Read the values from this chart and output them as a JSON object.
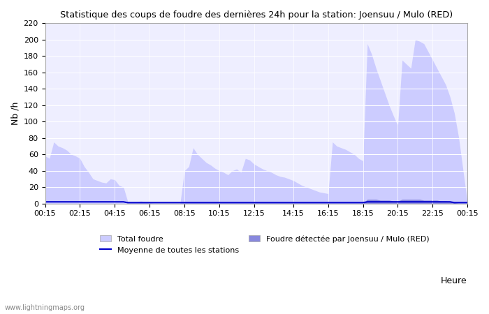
{
  "title": "Statistique des coups de foudre des dernières 24h pour la station: Joensuu / Mulo (RED)",
  "xlabel": "Heure",
  "ylabel": "Nb /h",
  "ylim": [
    0,
    220
  ],
  "yticks": [
    0,
    20,
    40,
    60,
    80,
    100,
    120,
    140,
    160,
    180,
    200,
    220
  ],
  "x_labels": [
    "00:15",
    "02:15",
    "04:15",
    "06:15",
    "08:15",
    "10:15",
    "12:15",
    "14:15",
    "16:15",
    "18:15",
    "20:15",
    "22:15",
    "00:15"
  ],
  "background_color": "#ffffff",
  "plot_bg_color": "#eeeeff",
  "grid_color": "#ffffff",
  "total_foudre_color": "#ccccff",
  "detected_color": "#8888dd",
  "avg_line_color": "#0000cc",
  "watermark": "www.lightningmaps.org",
  "total_foudre": [
    58,
    55,
    75,
    70,
    68,
    65,
    60,
    58,
    55,
    45,
    38,
    30,
    28,
    26,
    25,
    30,
    29,
    22,
    20,
    2,
    2,
    2,
    3,
    2,
    1,
    0,
    0,
    0,
    0,
    0,
    0,
    0,
    40,
    45,
    68,
    60,
    55,
    50,
    47,
    43,
    40,
    38,
    35,
    40,
    42,
    38,
    55,
    53,
    48,
    45,
    42,
    40,
    38,
    35,
    33,
    32,
    30,
    28,
    25,
    22,
    20,
    18,
    16,
    14,
    13,
    12,
    75,
    70,
    68,
    66,
    63,
    60,
    55,
    52,
    195,
    182,
    165,
    150,
    135,
    120,
    107,
    95,
    175,
    170,
    165,
    200,
    198,
    195,
    185,
    175,
    165,
    155,
    145,
    130,
    110,
    80,
    40,
    0
  ],
  "detected_foudre": [
    0,
    0,
    0,
    0,
    0,
    0,
    0,
    0,
    0,
    0,
    0,
    0,
    0,
    0,
    0,
    0,
    0,
    0,
    0,
    0,
    0,
    0,
    0,
    0,
    0,
    0,
    0,
    0,
    0,
    0,
    0,
    0,
    0,
    0,
    0,
    0,
    0,
    0,
    0,
    0,
    0,
    0,
    0,
    0,
    0,
    0,
    0,
    0,
    0,
    0,
    0,
    0,
    0,
    0,
    0,
    0,
    0,
    0,
    0,
    0,
    0,
    0,
    0,
    0,
    0,
    0,
    0,
    0,
    0,
    0,
    0,
    0,
    0,
    0,
    5,
    5,
    5,
    4,
    4,
    4,
    3,
    3,
    5,
    5,
    5,
    5,
    5,
    4,
    4,
    4,
    4,
    3,
    3,
    2,
    1,
    0,
    0,
    0
  ],
  "avg_line": [
    2,
    2,
    2,
    2,
    2,
    2,
    2,
    2,
    2,
    2,
    2,
    2,
    2,
    2,
    2,
    2,
    2,
    2,
    2,
    1,
    1,
    1,
    1,
    1,
    1,
    1,
    1,
    1,
    1,
    1,
    1,
    1,
    1,
    1,
    1,
    1,
    1,
    1,
    1,
    1,
    1,
    1,
    1,
    1,
    1,
    1,
    1,
    1,
    1,
    1,
    1,
    1,
    1,
    1,
    1,
    1,
    1,
    1,
    1,
    1,
    1,
    1,
    1,
    1,
    1,
    1,
    1,
    1,
    1,
    1,
    1,
    1,
    1,
    1,
    2,
    2,
    2,
    2,
    2,
    2,
    2,
    2,
    2,
    2,
    2,
    2,
    2,
    2,
    2,
    2,
    2,
    2,
    2,
    2,
    1,
    1,
    1,
    1
  ]
}
